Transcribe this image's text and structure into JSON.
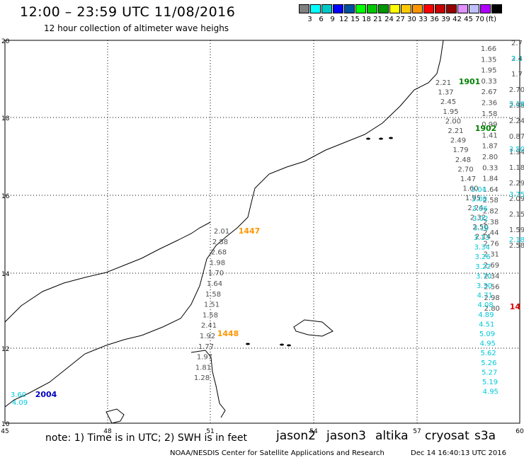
{
  "header": {
    "title": "12:00 – 23:59 UTC 11/08/2016",
    "subtitle": "12 hour collection of altimeter wave heighs"
  },
  "color_scale": {
    "colors": [
      "#808080",
      "#00ffff",
      "#00c8c8",
      "#0000ff",
      "#0050a0",
      "#00ff00",
      "#00c800",
      "#009600",
      "#ffff00",
      "#ffc800",
      "#ff9600",
      "#ff0000",
      "#c80000",
      "#960000",
      "#e090ff",
      "#c0c0ff",
      "#b000ff",
      "#000000"
    ],
    "labels": [
      "3",
      "6",
      "9",
      "12",
      "15",
      "18",
      "21",
      "24",
      "27",
      "30",
      "33",
      "36",
      "39",
      "42",
      "45",
      "70",
      "(ft)"
    ]
  },
  "axes": {
    "x_ticks": [
      "45",
      "48",
      "51",
      "54",
      "57",
      "60"
    ],
    "y_ticks": [
      "20",
      "18",
      "16",
      "14",
      "12",
      "10"
    ]
  },
  "tracks": [
    {
      "label": "1901",
      "color": "#008000"
    },
    {
      "label": "1902",
      "color": "#008000"
    },
    {
      "label": "1447",
      "color": "#ff9600"
    },
    {
      "label": "1448",
      "color": "#ff9600"
    },
    {
      "label": "2004",
      "color": "#0000c0"
    }
  ],
  "wave_heights": {
    "gray_col_a": [
      "1.66",
      "1.35",
      "1.95",
      "0.33",
      "2.67",
      "2.36",
      "1.58",
      "0.99",
      "1.41",
      "1.87",
      "2.80",
      "0.33",
      "1.84",
      "1.64",
      "2.58",
      "2.82",
      "2.38",
      "2.44",
      "2.76",
      "2.31",
      "2.69",
      "2.34",
      "2.56",
      "2.98",
      "2.80"
    ],
    "gray_col_b": [
      "2.7",
      "2.4",
      "1.7",
      "2.70",
      "2.98",
      "2.24",
      "0.87",
      "1.94",
      "1.18",
      "2.29",
      "2.09",
      "2.15",
      "1.59",
      "2.58"
    ],
    "gray_track_1901": [
      "2.21",
      "1.37",
      "2.45",
      "1.95",
      "2.00",
      "2.21",
      "2.49",
      "1.79",
      "2.48",
      "2.70",
      "1.47",
      "1.60",
      "1.95",
      "2.24",
      "2.32",
      "2.50",
      "2.14"
    ],
    "cyan_track_1901": [
      "3.04",
      "3.08",
      "3.06",
      "3.02",
      "3.19",
      "3.13",
      "3.34",
      "3.26",
      "3.22",
      "3.70",
      "3.30",
      "4.71",
      "4.08",
      "4.89",
      "4.51",
      "5.09",
      "4.95",
      "5.62",
      "5.26",
      "5.27",
      "5.19",
      "4.95"
    ],
    "gray_track_1447": [
      "2.01",
      "2.88",
      "2.68",
      "1.98",
      "1.70",
      "1.64",
      "1.58",
      "1.51",
      "1.58",
      "2.41",
      "1.92",
      "1.77",
      "1.97",
      "1.81",
      "1.28"
    ],
    "track_2004": [
      "3.60",
      "4.09"
    ],
    "cyan_edge": [
      "3.1",
      "3.19",
      "3.50",
      "3.75",
      "2.18"
    ],
    "red_edge": [
      "14"
    ]
  },
  "footer": {
    "note": "note: 1) Time is in UTC; 2) SWH is in feet",
    "satellites": [
      {
        "name": "jason2",
        "color": "#0000dd"
      },
      {
        "name": "jason3",
        "color": "#008800"
      },
      {
        "name": "altika",
        "color": "#ff9600"
      },
      {
        "name": "cryosat",
        "color": "#ee0000"
      },
      {
        "name": "s3a",
        "color": "#9a0000"
      }
    ],
    "credit": "NOAA/NESDIS Center for Satellite Applications and Research",
    "timestamp": "Dec 14 16:40:13 UTC 2016"
  }
}
